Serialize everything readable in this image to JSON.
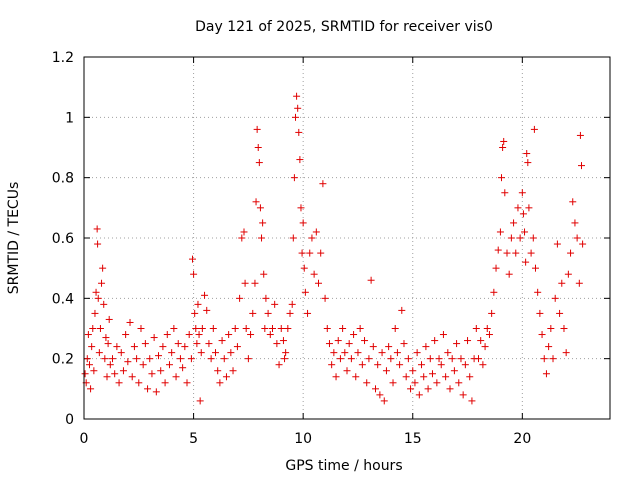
{
  "chart_data": {
    "type": "scatter",
    "title": "Day 121 of 2025, SRMTID for receiver vis0",
    "xlabel": "GPS time / hours",
    "ylabel": "SRMTID / TECUs",
    "xlim": [
      0,
      24
    ],
    "ylim": [
      0,
      1.2
    ],
    "x_ticks": [
      0,
      5,
      10,
      15,
      20
    ],
    "x_tick_labels": [
      "0",
      "5",
      "10",
      "15",
      "20"
    ],
    "y_ticks": [
      0,
      0.2,
      0.4,
      0.6,
      0.8,
      1.0,
      1.2
    ],
    "y_tick_labels": [
      "0",
      "0.2",
      "0.4",
      "0.6",
      "0.8",
      "1",
      "1.2"
    ],
    "grid": true,
    "marker": "+",
    "marker_color": "#e00000",
    "series": [
      {
        "name": "vis0",
        "points": [
          [
            0.05,
            0.15
          ],
          [
            0.1,
            0.12
          ],
          [
            0.15,
            0.2
          ],
          [
            0.2,
            0.28
          ],
          [
            0.25,
            0.18
          ],
          [
            0.3,
            0.1
          ],
          [
            0.35,
            0.24
          ],
          [
            0.4,
            0.3
          ],
          [
            0.45,
            0.16
          ],
          [
            0.5,
            0.35
          ],
          [
            0.55,
            0.42
          ],
          [
            0.6,
            0.63
          ],
          [
            0.62,
            0.58
          ],
          [
            0.65,
            0.4
          ],
          [
            0.7,
            0.22
          ],
          [
            0.75,
            0.3
          ],
          [
            0.8,
            0.45
          ],
          [
            0.85,
            0.5
          ],
          [
            0.9,
            0.38
          ],
          [
            0.95,
            0.2
          ],
          [
            1.0,
            0.27
          ],
          [
            1.05,
            0.14
          ],
          [
            1.1,
            0.25
          ],
          [
            1.15,
            0.33
          ],
          [
            1.2,
            0.18
          ],
          [
            1.3,
            0.2
          ],
          [
            1.4,
            0.15
          ],
          [
            1.5,
            0.24
          ],
          [
            1.6,
            0.12
          ],
          [
            1.7,
            0.22
          ],
          [
            1.8,
            0.16
          ],
          [
            1.9,
            0.28
          ],
          [
            2.0,
            0.19
          ],
          [
            2.1,
            0.32
          ],
          [
            2.2,
            0.14
          ],
          [
            2.3,
            0.24
          ],
          [
            2.4,
            0.2
          ],
          [
            2.5,
            0.12
          ],
          [
            2.6,
            0.3
          ],
          [
            2.7,
            0.18
          ],
          [
            2.8,
            0.25
          ],
          [
            2.9,
            0.1
          ],
          [
            3.0,
            0.2
          ],
          [
            3.1,
            0.15
          ],
          [
            3.2,
            0.27
          ],
          [
            3.3,
            0.09
          ],
          [
            3.4,
            0.21
          ],
          [
            3.5,
            0.16
          ],
          [
            3.6,
            0.24
          ],
          [
            3.7,
            0.12
          ],
          [
            3.8,
            0.28
          ],
          [
            3.9,
            0.18
          ],
          [
            4.0,
            0.22
          ],
          [
            4.1,
            0.3
          ],
          [
            4.2,
            0.14
          ],
          [
            4.3,
            0.25
          ],
          [
            4.4,
            0.2
          ],
          [
            4.5,
            0.17
          ],
          [
            4.6,
            0.24
          ],
          [
            4.7,
            0.12
          ],
          [
            4.8,
            0.28
          ],
          [
            4.9,
            0.2
          ],
          [
            4.95,
            0.53
          ],
          [
            5.0,
            0.48
          ],
          [
            5.05,
            0.35
          ],
          [
            5.1,
            0.3
          ],
          [
            5.15,
            0.25
          ],
          [
            5.2,
            0.38
          ],
          [
            5.25,
            0.28
          ],
          [
            5.3,
            0.06
          ],
          [
            5.35,
            0.22
          ],
          [
            5.4,
            0.3
          ],
          [
            5.5,
            0.41
          ],
          [
            5.6,
            0.36
          ],
          [
            5.7,
            0.25
          ],
          [
            5.8,
            0.2
          ],
          [
            5.9,
            0.3
          ],
          [
            6.0,
            0.22
          ],
          [
            6.1,
            0.16
          ],
          [
            6.2,
            0.12
          ],
          [
            6.3,
            0.26
          ],
          [
            6.4,
            0.2
          ],
          [
            6.5,
            0.14
          ],
          [
            6.6,
            0.28
          ],
          [
            6.7,
            0.22
          ],
          [
            6.8,
            0.16
          ],
          [
            6.9,
            0.3
          ],
          [
            7.0,
            0.24
          ],
          [
            7.1,
            0.4
          ],
          [
            7.2,
            0.6
          ],
          [
            7.3,
            0.62
          ],
          [
            7.35,
            0.45
          ],
          [
            7.4,
            0.3
          ],
          [
            7.5,
            0.2
          ],
          [
            7.6,
            0.28
          ],
          [
            7.7,
            0.35
          ],
          [
            7.8,
            0.45
          ],
          [
            7.85,
            0.72
          ],
          [
            7.9,
            0.96
          ],
          [
            7.95,
            0.9
          ],
          [
            8.0,
            0.85
          ],
          [
            8.05,
            0.7
          ],
          [
            8.1,
            0.6
          ],
          [
            8.15,
            0.65
          ],
          [
            8.2,
            0.48
          ],
          [
            8.25,
            0.3
          ],
          [
            8.3,
            0.4
          ],
          [
            8.4,
            0.35
          ],
          [
            8.5,
            0.28
          ],
          [
            8.6,
            0.3
          ],
          [
            8.7,
            0.38
          ],
          [
            8.8,
            0.25
          ],
          [
            8.9,
            0.18
          ],
          [
            9.0,
            0.3
          ],
          [
            9.1,
            0.26
          ],
          [
            9.15,
            0.2
          ],
          [
            9.2,
            0.22
          ],
          [
            9.3,
            0.3
          ],
          [
            9.4,
            0.35
          ],
          [
            9.5,
            0.38
          ],
          [
            9.55,
            0.6
          ],
          [
            9.6,
            0.8
          ],
          [
            9.65,
            1.0
          ],
          [
            9.7,
            1.07
          ],
          [
            9.75,
            1.03
          ],
          [
            9.8,
            0.95
          ],
          [
            9.85,
            0.86
          ],
          [
            9.9,
            0.7
          ],
          [
            9.95,
            0.55
          ],
          [
            10.0,
            0.65
          ],
          [
            10.05,
            0.5
          ],
          [
            10.1,
            0.42
          ],
          [
            10.2,
            0.35
          ],
          [
            10.3,
            0.55
          ],
          [
            10.4,
            0.6
          ],
          [
            10.5,
            0.48
          ],
          [
            10.6,
            0.62
          ],
          [
            10.7,
            0.45
          ],
          [
            10.8,
            0.55
          ],
          [
            10.9,
            0.78
          ],
          [
            11.0,
            0.4
          ],
          [
            11.1,
            0.3
          ],
          [
            11.2,
            0.25
          ],
          [
            11.3,
            0.18
          ],
          [
            11.4,
            0.22
          ],
          [
            11.5,
            0.14
          ],
          [
            11.6,
            0.26
          ],
          [
            11.7,
            0.2
          ],
          [
            11.8,
            0.3
          ],
          [
            11.9,
            0.22
          ],
          [
            12.0,
            0.16
          ],
          [
            12.1,
            0.25
          ],
          [
            12.2,
            0.2
          ],
          [
            12.3,
            0.28
          ],
          [
            12.4,
            0.14
          ],
          [
            12.5,
            0.22
          ],
          [
            12.6,
            0.3
          ],
          [
            12.7,
            0.18
          ],
          [
            12.8,
            0.26
          ],
          [
            12.9,
            0.12
          ],
          [
            13.0,
            0.2
          ],
          [
            13.1,
            0.46
          ],
          [
            13.2,
            0.24
          ],
          [
            13.3,
            0.1
          ],
          [
            13.4,
            0.18
          ],
          [
            13.5,
            0.08
          ],
          [
            13.6,
            0.22
          ],
          [
            13.7,
            0.06
          ],
          [
            13.8,
            0.16
          ],
          [
            13.9,
            0.24
          ],
          [
            14.0,
            0.2
          ],
          [
            14.1,
            0.12
          ],
          [
            14.2,
            0.3
          ],
          [
            14.3,
            0.22
          ],
          [
            14.4,
            0.18
          ],
          [
            14.5,
            0.36
          ],
          [
            14.6,
            0.25
          ],
          [
            14.7,
            0.14
          ],
          [
            14.8,
            0.2
          ],
          [
            14.9,
            0.1
          ],
          [
            15.0,
            0.16
          ],
          [
            15.1,
            0.12
          ],
          [
            15.2,
            0.22
          ],
          [
            15.3,
            0.08
          ],
          [
            15.4,
            0.18
          ],
          [
            15.5,
            0.14
          ],
          [
            15.6,
            0.24
          ],
          [
            15.7,
            0.1
          ],
          [
            15.8,
            0.2
          ],
          [
            15.9,
            0.15
          ],
          [
            16.0,
            0.26
          ],
          [
            16.1,
            0.12
          ],
          [
            16.2,
            0.2
          ],
          [
            16.3,
            0.18
          ],
          [
            16.4,
            0.28
          ],
          [
            16.5,
            0.14
          ],
          [
            16.6,
            0.22
          ],
          [
            16.7,
            0.1
          ],
          [
            16.8,
            0.2
          ],
          [
            16.9,
            0.16
          ],
          [
            17.0,
            0.25
          ],
          [
            17.1,
            0.12
          ],
          [
            17.2,
            0.2
          ],
          [
            17.3,
            0.08
          ],
          [
            17.4,
            0.18
          ],
          [
            17.5,
            0.26
          ],
          [
            17.6,
            0.14
          ],
          [
            17.7,
            0.06
          ],
          [
            17.8,
            0.2
          ],
          [
            17.9,
            0.3
          ],
          [
            18.0,
            0.2
          ],
          [
            18.1,
            0.26
          ],
          [
            18.2,
            0.18
          ],
          [
            18.3,
            0.24
          ],
          [
            18.4,
            0.3
          ],
          [
            18.5,
            0.28
          ],
          [
            18.6,
            0.35
          ],
          [
            18.7,
            0.42
          ],
          [
            18.8,
            0.5
          ],
          [
            18.9,
            0.56
          ],
          [
            19.0,
            0.62
          ],
          [
            19.05,
            0.8
          ],
          [
            19.1,
            0.9
          ],
          [
            19.15,
            0.92
          ],
          [
            19.2,
            0.75
          ],
          [
            19.3,
            0.55
          ],
          [
            19.4,
            0.48
          ],
          [
            19.5,
            0.6
          ],
          [
            19.6,
            0.65
          ],
          [
            19.7,
            0.55
          ],
          [
            19.8,
            0.7
          ],
          [
            19.9,
            0.6
          ],
          [
            20.0,
            0.75
          ],
          [
            20.05,
            0.68
          ],
          [
            20.1,
            0.62
          ],
          [
            20.15,
            0.52
          ],
          [
            20.2,
            0.88
          ],
          [
            20.25,
            0.85
          ],
          [
            20.3,
            0.7
          ],
          [
            20.4,
            0.55
          ],
          [
            20.5,
            0.6
          ],
          [
            20.55,
            0.96
          ],
          [
            20.6,
            0.5
          ],
          [
            20.7,
            0.42
          ],
          [
            20.8,
            0.35
          ],
          [
            20.9,
            0.28
          ],
          [
            21.0,
            0.2
          ],
          [
            21.1,
            0.15
          ],
          [
            21.2,
            0.24
          ],
          [
            21.3,
            0.3
          ],
          [
            21.4,
            0.2
          ],
          [
            21.5,
            0.4
          ],
          [
            21.6,
            0.58
          ],
          [
            21.7,
            0.35
          ],
          [
            21.8,
            0.45
          ],
          [
            21.9,
            0.3
          ],
          [
            22.0,
            0.22
          ],
          [
            22.1,
            0.48
          ],
          [
            22.2,
            0.55
          ],
          [
            22.3,
            0.72
          ],
          [
            22.4,
            0.65
          ],
          [
            22.5,
            0.6
          ],
          [
            22.6,
            0.45
          ],
          [
            22.65,
            0.94
          ],
          [
            22.7,
            0.84
          ],
          [
            22.75,
            0.58
          ]
        ]
      }
    ]
  }
}
